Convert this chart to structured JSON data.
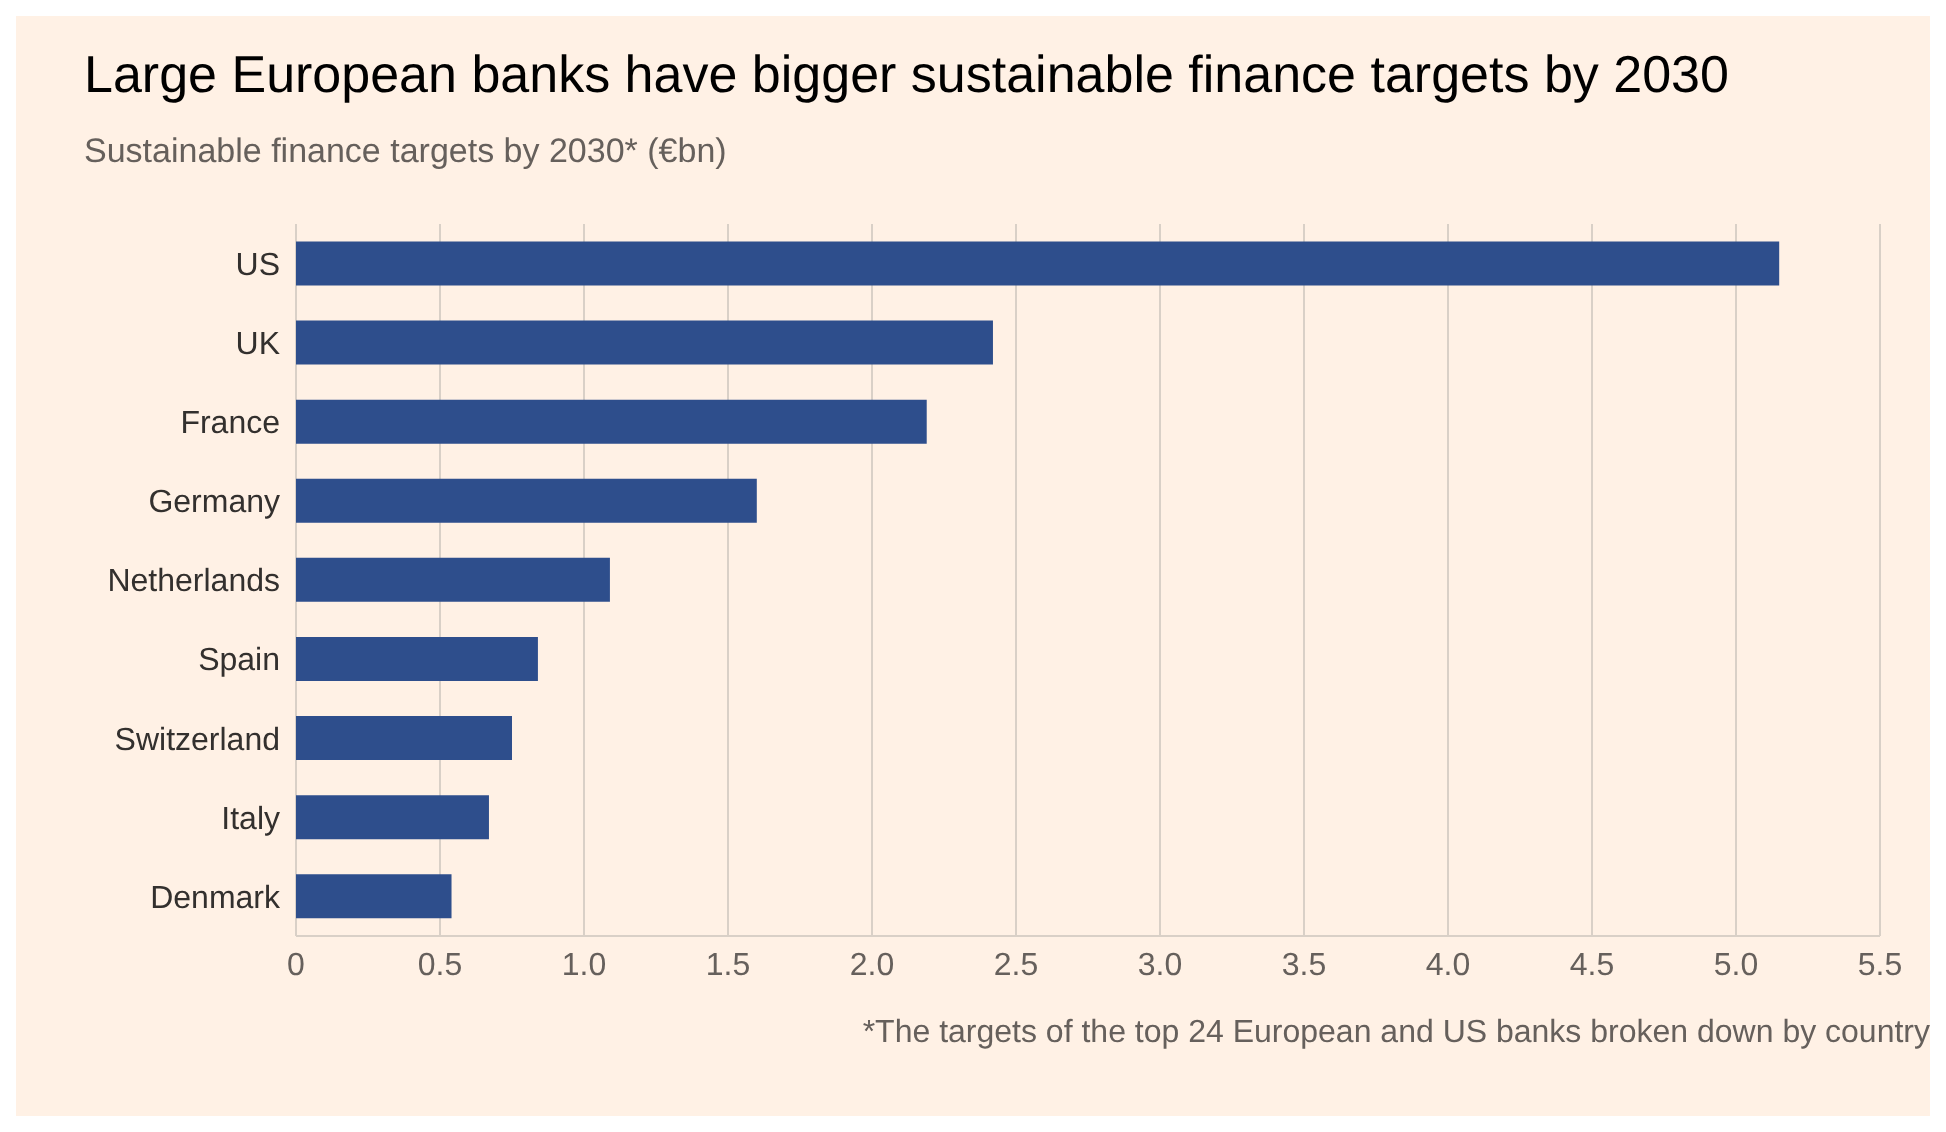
{
  "chart_data": {
    "type": "bar",
    "orientation": "horizontal",
    "title": "Large European banks have bigger sustainable finance targets by 2030",
    "subtitle": "Sustainable finance targets by 2030* (€bn)",
    "categories": [
      "US",
      "UK",
      "France",
      "Germany",
      "Netherlands",
      "Spain",
      "Switzerland",
      "Italy",
      "Denmark"
    ],
    "values": [
      5.15,
      2.42,
      2.19,
      1.6,
      1.09,
      0.84,
      0.75,
      0.67,
      0.54
    ],
    "color": "#2e4e8c",
    "xlim": [
      0,
      5.5
    ],
    "xticks": [
      0,
      0.5,
      {
        "value": 1,
        "label": "1.0"
      },
      1.5,
      {
        "value": 2,
        "label": "2.0"
      },
      2.5,
      {
        "value": 3,
        "label": "3.0"
      },
      3.5,
      {
        "value": 4,
        "label": "4.0"
      },
      4.5,
      {
        "value": 5,
        "label": "5.0"
      },
      5.5
    ],
    "grid": "x",
    "annotations": [
      "*The targets of the top 24 European and US banks broken down by country"
    ]
  }
}
